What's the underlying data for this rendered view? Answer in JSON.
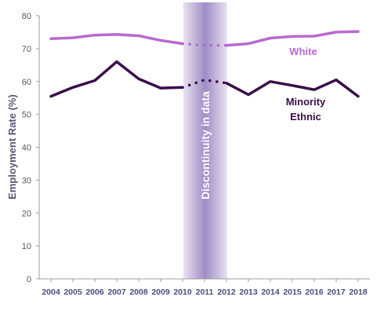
{
  "chart_data": {
    "type": "line",
    "ylabel": "Employment Rate (%)",
    "ylim": [
      0,
      80
    ],
    "yticks": [
      "0",
      "10",
      "20",
      "30",
      "40",
      "50",
      "60",
      "70",
      "80"
    ],
    "categories": [
      "2004",
      "2005",
      "2006",
      "2007",
      "2008",
      "2009",
      "2010",
      "2011",
      "2012",
      "2013",
      "2014",
      "2015",
      "2016",
      "2017",
      "2018"
    ],
    "grid": false,
    "annotation": "Discontinuity in data",
    "discontinuity": {
      "from": "2010",
      "to": "2012"
    },
    "series": [
      {
        "name": "White",
        "color": "#b86ad0",
        "values": [
          73.0,
          73.3,
          74.1,
          74.3,
          73.9,
          72.5,
          71.5,
          71.0,
          71.0,
          71.5,
          73.2,
          73.7,
          73.8,
          75.0,
          75.2
        ]
      },
      {
        "name": "Minority\nEthnic",
        "color": "#3a0f4a",
        "values": [
          55.5,
          58.2,
          60.3,
          66.0,
          60.8,
          58.0,
          58.2,
          60.5,
          59.5,
          56.0,
          60.0,
          58.8,
          57.5,
          60.5,
          55.5
        ]
      }
    ]
  }
}
